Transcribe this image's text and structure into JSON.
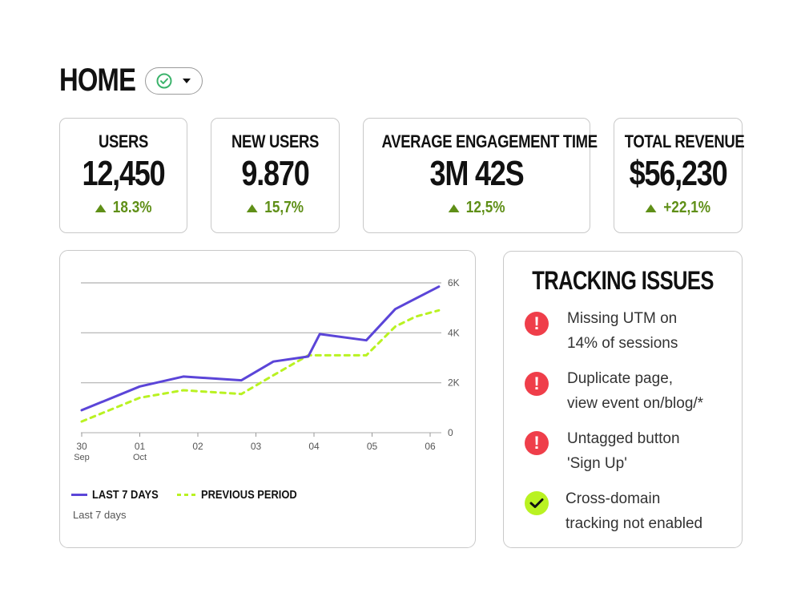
{
  "header": {
    "title": "HOME"
  },
  "stats": [
    {
      "label": "USERS",
      "value": "12,450",
      "change": "18.3%"
    },
    {
      "label": "NEW USERS",
      "value": "9.870",
      "change": "15,7%"
    },
    {
      "label": "AVERAGE ENGAGEMENT TIME",
      "value": "3M 42S",
      "change": "12,5%"
    },
    {
      "label": "TOTAL REVENUE",
      "value": "$56,230",
      "change": "+22,1%"
    }
  ],
  "colors": {
    "positive": "#5f8f17",
    "series_current": "#5b45d8",
    "series_previous": "#b9f222",
    "error": "#ef3e4a"
  },
  "chart_data": {
    "type": "line",
    "title": "",
    "x_ticks": [
      {
        "x": 0,
        "label": "30",
        "sub": "Sep"
      },
      {
        "x": 1,
        "label": "01",
        "sub": "Oct"
      },
      {
        "x": 2,
        "label": "02",
        "sub": ""
      },
      {
        "x": 3,
        "label": "03",
        "sub": ""
      },
      {
        "x": 4,
        "label": "04",
        "sub": ""
      },
      {
        "x": 5,
        "label": "05",
        "sub": ""
      },
      {
        "x": 6,
        "label": "06",
        "sub": ""
      }
    ],
    "y_ticks": [
      {
        "value": 0,
        "label": "0"
      },
      {
        "value": 2000,
        "label": "2K"
      },
      {
        "value": 4000,
        "label": "4K"
      },
      {
        "value": 6000,
        "label": "6K"
      }
    ],
    "ylim": [
      0,
      6000
    ],
    "xlim": [
      0,
      6
    ],
    "series": [
      {
        "name": "LAST 7 DAYS",
        "style": "solid",
        "x": [
          0,
          1,
          1.75,
          2.75,
          3.3,
          3.9,
          4.1,
          4.9,
          5.4,
          6.15
        ],
        "y": [
          900,
          1850,
          2250,
          2100,
          2850,
          3050,
          3950,
          3700,
          4950,
          5850
        ]
      },
      {
        "name": "PREVIOUS PERIOD",
        "style": "dashed",
        "x": [
          0,
          1,
          1.75,
          2.75,
          3.3,
          3.9,
          4.1,
          4.9,
          5.4,
          5.75,
          6.15
        ],
        "y": [
          450,
          1400,
          1700,
          1550,
          2300,
          3100,
          3100,
          3100,
          4250,
          4650,
          4900
        ]
      }
    ],
    "legend": [
      "LAST 7 DAYS",
      "PREVIOUS PERIOD"
    ],
    "subtitle": "Last 7 days"
  },
  "issues": {
    "title": "TRACKING ISSUES",
    "items": [
      {
        "status": "error",
        "icon": "exclamation-icon",
        "line1": "Missing UTM on",
        "line2": "14% of sessions"
      },
      {
        "status": "error",
        "icon": "exclamation-icon",
        "line1": "Duplicate page,",
        "line2": "view event on/blog/*"
      },
      {
        "status": "error",
        "icon": "exclamation-icon",
        "line1": "Untagged button",
        "line2": "'Sign Up'"
      },
      {
        "status": "ok",
        "icon": "checkmark-icon",
        "line1": "Cross-domain",
        "line2": "tracking not enabled"
      }
    ]
  }
}
